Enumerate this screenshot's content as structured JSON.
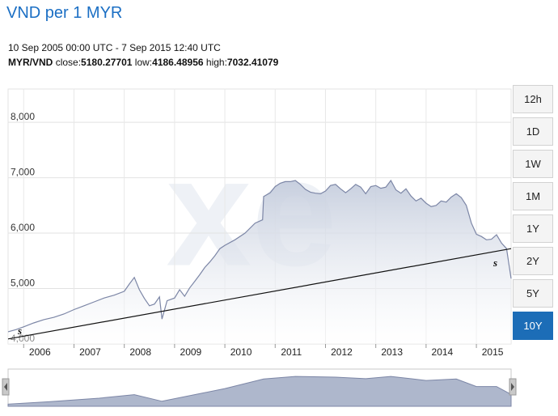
{
  "header": {
    "title": "VND per 1 MYR",
    "date_range": "10 Sep 2005 00:00 UTC - 7 Sep 2015 12:40 UTC",
    "pair": "MYR/VND",
    "close_label": "close:",
    "close_value": "5180.27701",
    "low_label": "low:",
    "low_value": "4186.48956",
    "high_label": "high:",
    "high_value": "7032.41079"
  },
  "range_buttons": [
    {
      "label": "12h",
      "active": false
    },
    {
      "label": "1D",
      "active": false
    },
    {
      "label": "1W",
      "active": false
    },
    {
      "label": "1M",
      "active": false
    },
    {
      "label": "1Y",
      "active": false
    },
    {
      "label": "2Y",
      "active": false
    },
    {
      "label": "5Y",
      "active": false
    },
    {
      "label": "10Y",
      "active": true
    }
  ],
  "chart_data": {
    "type": "area",
    "title": "VND per 1 MYR",
    "x_unit": "year",
    "xlim": [
      2005.69,
      2015.69
    ],
    "ylim": [
      4000,
      8600
    ],
    "ytick_values": [
      4000,
      5000,
      6000,
      7000,
      8000
    ],
    "ytick_labels": [
      "4,000",
      "5,000",
      "6,000",
      "7,000",
      "8,000"
    ],
    "xtick_values": [
      2006,
      2007,
      2008,
      2009,
      2010,
      2011,
      2012,
      2013,
      2014,
      2015
    ],
    "xtick_labels": [
      "2006",
      "2007",
      "2008",
      "2009",
      "2010",
      "2011",
      "2012",
      "2013",
      "2014",
      "2015"
    ],
    "grid": true,
    "trend_line": {
      "x": [
        2005.69,
        2015.69
      ],
      "y": [
        4090,
        5720
      ]
    },
    "trend_label": "s",
    "accent": "#1c6db7",
    "area_fill": "#c5cddd",
    "line_color": "#7c86a6",
    "series": [
      {
        "x": [
          2005.69,
          2005.85,
          2006.0,
          2006.2,
          2006.4,
          2006.6,
          2006.8,
          2007.0,
          2007.2,
          2007.4,
          2007.6,
          2007.8,
          2008.0,
          2008.1,
          2008.2,
          2008.3,
          2008.4,
          2008.5,
          2008.6,
          2008.7,
          2008.75,
          2008.85,
          2009.0,
          2009.1,
          2009.2,
          2009.3,
          2009.4,
          2009.5,
          2009.6,
          2009.7,
          2009.8,
          2009.9,
          2010.0,
          2010.2,
          2010.4,
          2010.6,
          2010.75,
          2010.77,
          2010.9,
          2011.0,
          2011.1,
          2011.2,
          2011.3,
          2011.4,
          2011.5,
          2011.6,
          2011.7,
          2011.8,
          2011.9,
          2012.0,
          2012.1,
          2012.2,
          2012.3,
          2012.4,
          2012.5,
          2012.6,
          2012.7,
          2012.8,
          2012.9,
          2013.0,
          2013.1,
          2013.2,
          2013.3,
          2013.4,
          2013.5,
          2013.6,
          2013.7,
          2013.8,
          2013.9,
          2014.0,
          2014.1,
          2014.2,
          2014.3,
          2014.4,
          2014.5,
          2014.6,
          2014.7,
          2014.8,
          2014.9,
          2015.0,
          2015.1,
          2015.2,
          2015.3,
          2015.4,
          2015.5,
          2015.6,
          2015.69
        ],
        "y": [
          4220,
          4260,
          4310,
          4380,
          4440,
          4480,
          4540,
          4620,
          4690,
          4760,
          4830,
          4880,
          4950,
          5080,
          5200,
          4980,
          4820,
          4690,
          4720,
          4850,
          4450,
          4780,
          4830,
          4980,
          4860,
          5010,
          5130,
          5250,
          5380,
          5480,
          5590,
          5720,
          5780,
          5880,
          6000,
          6180,
          6240,
          6660,
          6730,
          6840,
          6900,
          6930,
          6930,
          6950,
          6880,
          6790,
          6740,
          6720,
          6710,
          6760,
          6860,
          6880,
          6800,
          6730,
          6800,
          6880,
          6830,
          6710,
          6840,
          6860,
          6810,
          6830,
          6950,
          6780,
          6720,
          6800,
          6670,
          6580,
          6630,
          6540,
          6480,
          6500,
          6580,
          6560,
          6650,
          6710,
          6640,
          6500,
          6180,
          5980,
          5940,
          5880,
          5890,
          5970,
          5820,
          5720,
          5180
        ]
      }
    ]
  },
  "navigator": {
    "x": [
      2005.69,
      2006.5,
      2007.5,
      2008.2,
      2008.75,
      2009.5,
      2010.0,
      2010.77,
      2011.4,
      2012.2,
      2012.8,
      2013.3,
      2014.0,
      2014.6,
      2015.0,
      2015.4,
      2015.69
    ],
    "y": [
      4220,
      4450,
      4800,
      5150,
      4500,
      5250,
      5750,
      6700,
      6950,
      6880,
      6730,
      6950,
      6550,
      6700,
      5950,
      5950,
      5180
    ]
  }
}
